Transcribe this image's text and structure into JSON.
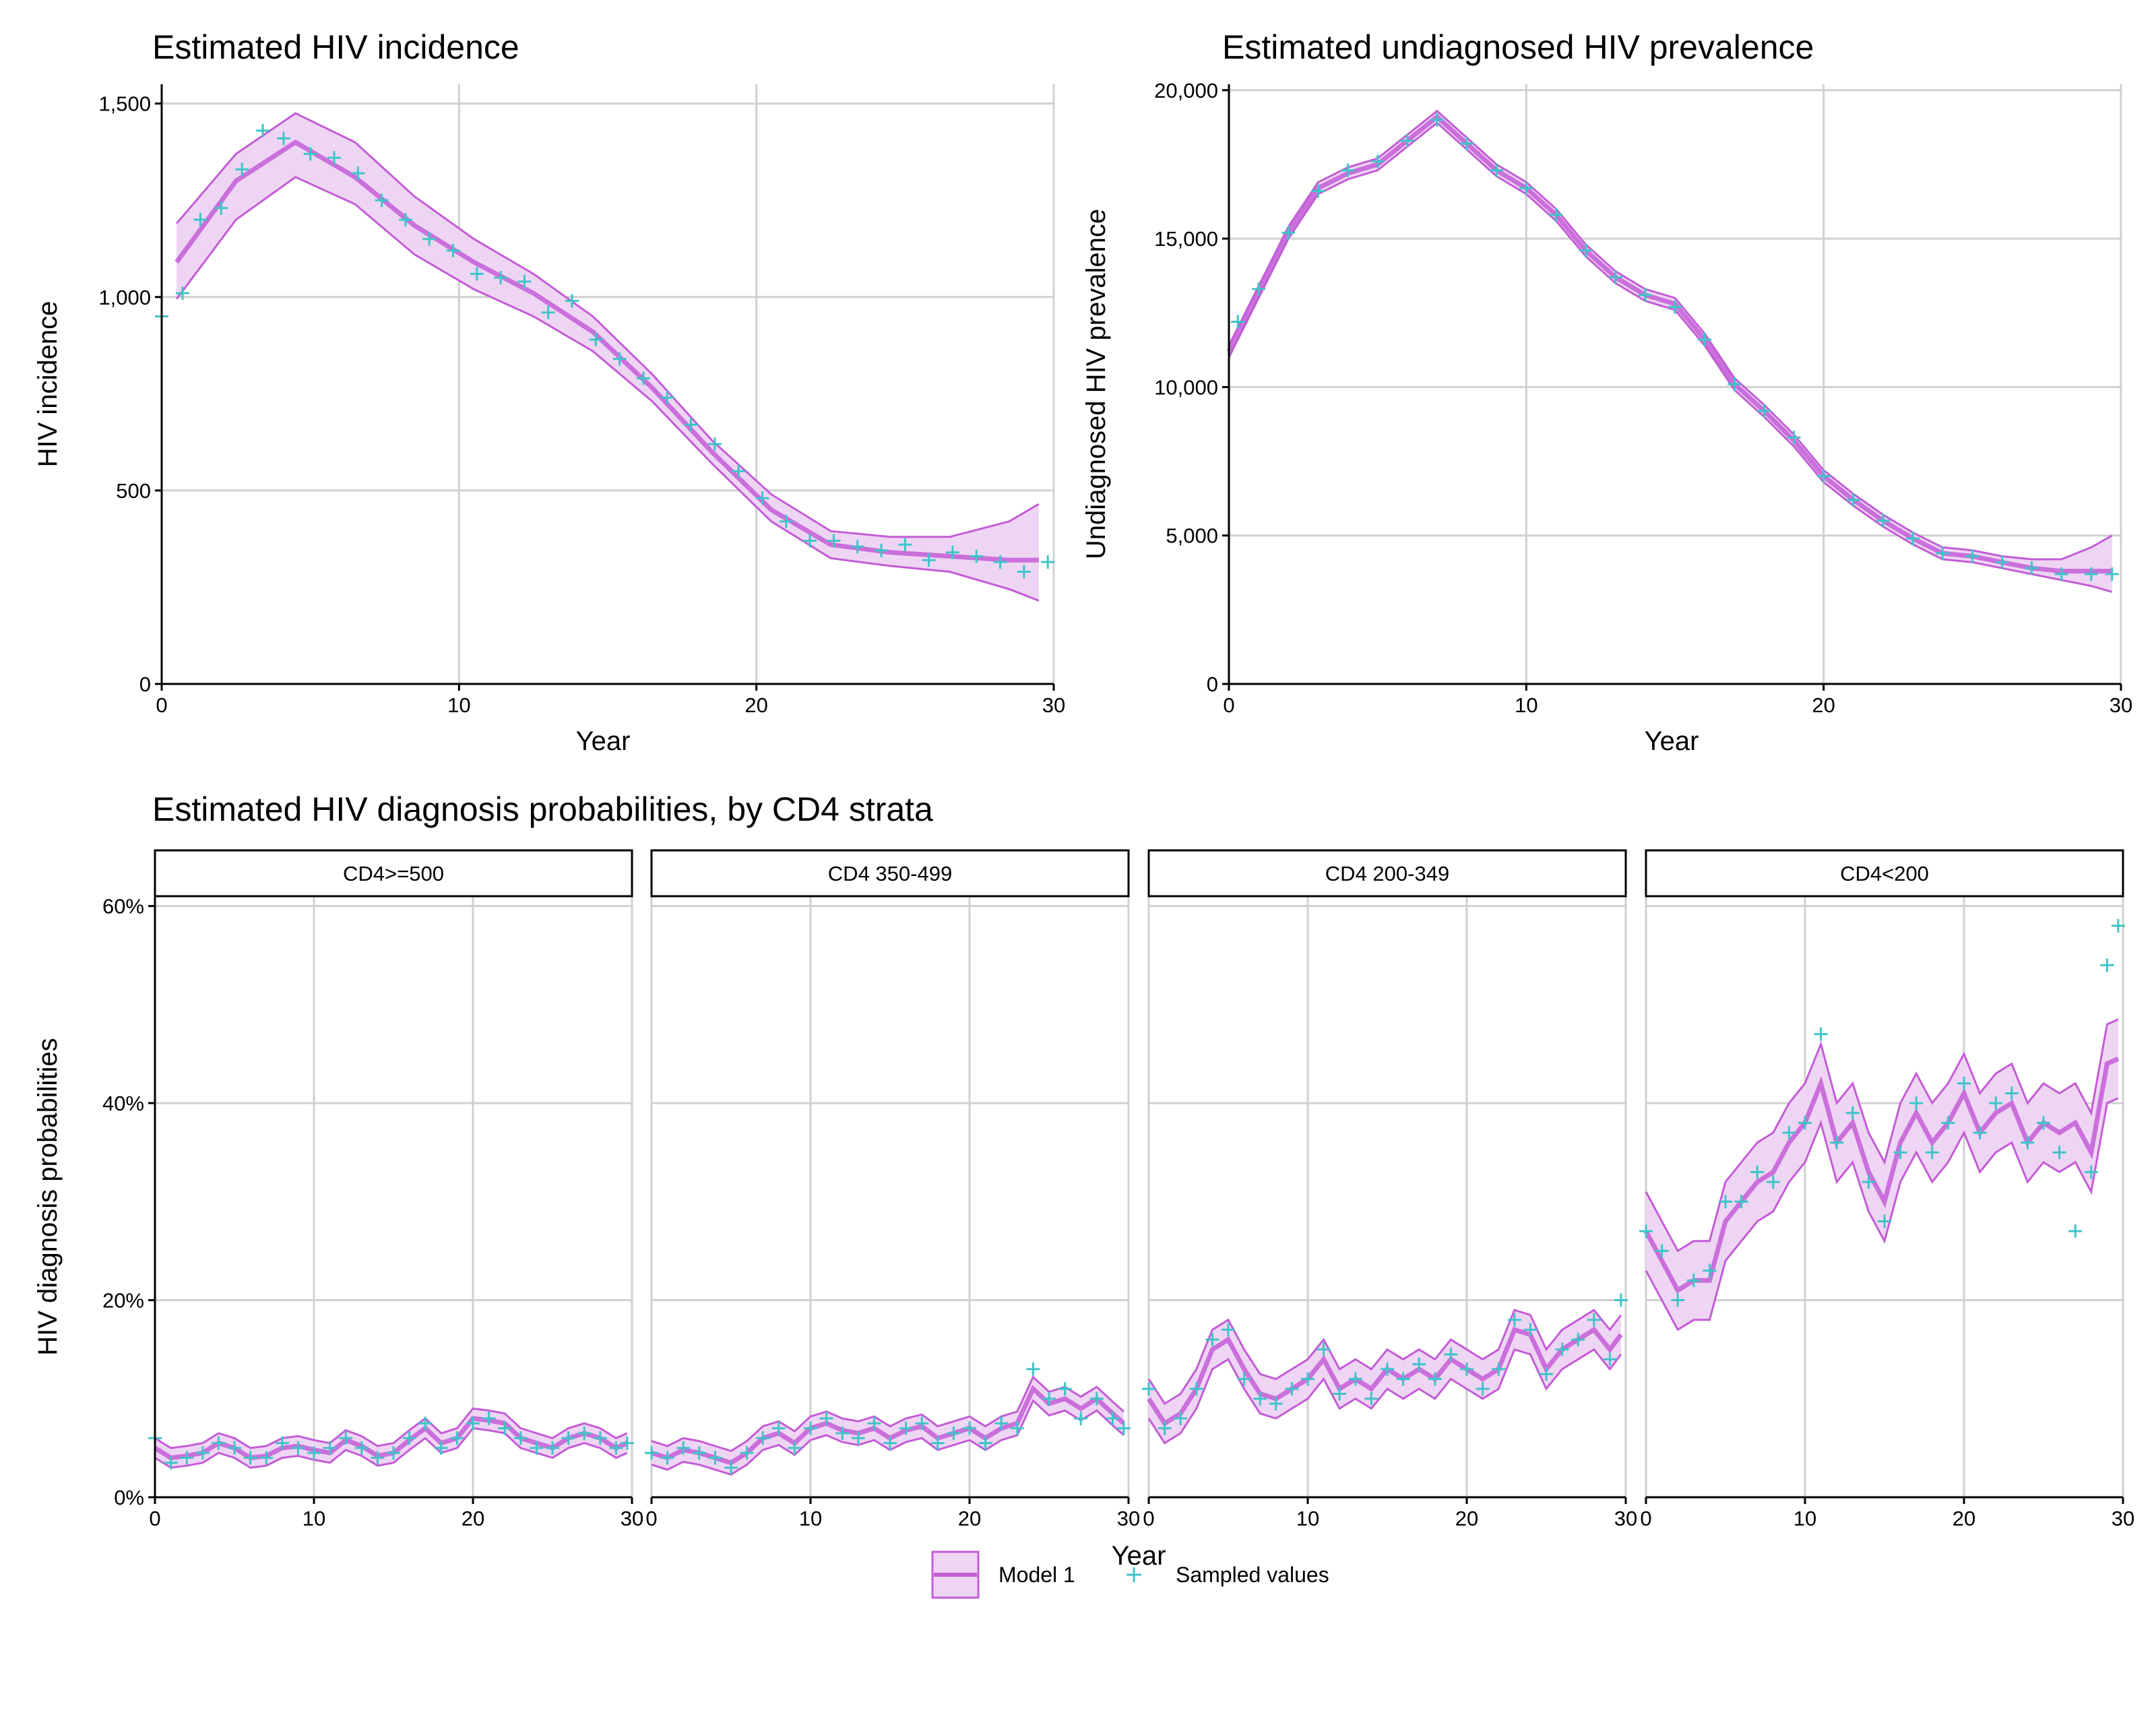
{
  "titles": {
    "incidence": "Estimated HIV incidence",
    "prevalence": "Estimated undiagnosed HIV prevalence",
    "diagnosis": "Estimated HIV diagnosis probabilities, by CD4 strata"
  },
  "legend": {
    "model": "Model 1",
    "sampled": "Sampled values"
  },
  "colors": {
    "model": "#c35dd6",
    "band": "#efd5f4",
    "sampled": "#3fc4c8",
    "grid": "#d0d0d0"
  },
  "chart_data": [
    {
      "id": "incidence",
      "type": "line",
      "title": "Estimated HIV incidence",
      "xlabel": "Year",
      "ylabel": "HIV incidence",
      "xlim": [
        0,
        30
      ],
      "ylim": [
        0,
        1550
      ],
      "x_ticks": [
        "0",
        "10",
        "20",
        "30"
      ],
      "y_ticks": [
        "0",
        "500",
        "1,000",
        "1,500"
      ],
      "x": [
        0.5,
        2.5,
        4.5,
        6.5,
        8.5,
        10.5,
        12.5,
        14.5,
        16.5,
        18.5,
        20.5,
        22.5,
        24.5,
        26.5,
        28.5,
        29.5
      ],
      "series": [
        {
          "name": "Model 1",
          "kind": "median",
          "values": [
            1090,
            1300,
            1400,
            1310,
            1185,
            1090,
            1010,
            910,
            765,
            600,
            450,
            360,
            340,
            330,
            320,
            320
          ]
        },
        {
          "name": "Model 1",
          "kind": "upper",
          "values": [
            1190,
            1370,
            1475,
            1400,
            1260,
            1150,
            1060,
            950,
            800,
            630,
            490,
            395,
            380,
            380,
            420,
            465
          ]
        },
        {
          "name": "Model 1",
          "kind": "lower",
          "values": [
            995,
            1200,
            1310,
            1240,
            1110,
            1020,
            950,
            860,
            730,
            570,
            420,
            325,
            305,
            290,
            245,
            215
          ]
        }
      ],
      "sampled_values": [
        [
          0,
          950
        ],
        [
          0.7,
          1010
        ],
        [
          1.3,
          1200
        ],
        [
          2.0,
          1230
        ],
        [
          2.7,
          1330
        ],
        [
          3.4,
          1430
        ],
        [
          4.1,
          1410
        ],
        [
          5.0,
          1370
        ],
        [
          5.8,
          1360
        ],
        [
          6.6,
          1320
        ],
        [
          7.4,
          1250
        ],
        [
          8.2,
          1200
        ],
        [
          9.0,
          1150
        ],
        [
          9.8,
          1120
        ],
        [
          10.6,
          1060
        ],
        [
          11.4,
          1050
        ],
        [
          12.2,
          1040
        ],
        [
          13.0,
          960
        ],
        [
          13.8,
          990
        ],
        [
          14.6,
          890
        ],
        [
          15.4,
          840
        ],
        [
          16.2,
          790
        ],
        [
          17.0,
          740
        ],
        [
          17.8,
          670
        ],
        [
          18.6,
          620
        ],
        [
          19.4,
          550
        ],
        [
          20.2,
          480
        ],
        [
          21.0,
          420
        ],
        [
          21.8,
          370
        ],
        [
          22.6,
          370
        ],
        [
          23.4,
          355
        ],
        [
          24.2,
          345
        ],
        [
          25.0,
          360
        ],
        [
          25.8,
          320
        ],
        [
          26.6,
          340
        ],
        [
          27.4,
          330
        ],
        [
          28.2,
          315
        ],
        [
          29.0,
          290
        ],
        [
          29.8,
          315
        ]
      ]
    },
    {
      "id": "prevalence",
      "type": "line",
      "title": "Estimated undiagnosed HIV prevalence",
      "xlabel": "Year",
      "ylabel": "Undiagnosed HIV prevalence",
      "xlim": [
        0,
        30
      ],
      "ylim": [
        0,
        20200
      ],
      "x_ticks": [
        "0",
        "10",
        "20",
        "30"
      ],
      "y_ticks": [
        "0",
        "5,000",
        "10,000",
        "15,000",
        "20,000"
      ],
      "x": [
        0,
        1,
        2,
        3,
        4,
        5,
        6,
        7,
        8,
        9,
        10,
        11,
        12,
        13,
        14,
        15,
        16,
        17,
        18,
        19,
        20,
        21,
        22,
        23,
        24,
        25,
        26,
        27,
        28,
        29,
        29.7
      ],
      "series": [
        {
          "name": "Model 1",
          "kind": "median",
          "values": [
            11200,
            13200,
            15200,
            16700,
            17200,
            17500,
            18300,
            19100,
            18200,
            17300,
            16700,
            15800,
            14600,
            13700,
            13100,
            12800,
            11600,
            10100,
            9200,
            8200,
            7000,
            6200,
            5500,
            4900,
            4400,
            4300,
            4100,
            3900,
            3800,
            3800,
            3800
          ]
        },
        {
          "name": "Model 1",
          "kind": "upper",
          "values": [
            11400,
            13400,
            15400,
            16900,
            17400,
            17700,
            18500,
            19300,
            18400,
            17500,
            16900,
            16000,
            14800,
            13900,
            13300,
            13000,
            11800,
            10300,
            9400,
            8400,
            7200,
            6400,
            5700,
            5100,
            4600,
            4500,
            4300,
            4200,
            4200,
            4600,
            5000
          ]
        },
        {
          "name": "Model 1",
          "kind": "lower",
          "values": [
            11000,
            13000,
            15000,
            16500,
            17000,
            17300,
            18100,
            18900,
            18000,
            17100,
            16500,
            15600,
            14400,
            13500,
            12900,
            12600,
            11400,
            9900,
            9000,
            8000,
            6800,
            6000,
            5300,
            4700,
            4200,
            4100,
            3900,
            3700,
            3500,
            3300,
            3100
          ]
        }
      ],
      "sampled_values": [
        [
          0.3,
          12200
        ],
        [
          1.0,
          13300
        ],
        [
          2.0,
          15200
        ],
        [
          3.0,
          16600
        ],
        [
          4.0,
          17300
        ],
        [
          5.0,
          17600
        ],
        [
          6.0,
          18300
        ],
        [
          7.0,
          19000
        ],
        [
          8.0,
          18200
        ],
        [
          9.0,
          17300
        ],
        [
          10.0,
          16700
        ],
        [
          11.0,
          15800
        ],
        [
          12.0,
          14600
        ],
        [
          13.0,
          13700
        ],
        [
          14.0,
          13100
        ],
        [
          15.0,
          12700
        ],
        [
          16.0,
          11600
        ],
        [
          17.0,
          10100
        ],
        [
          18.0,
          9200
        ],
        [
          19.0,
          8300
        ],
        [
          20.0,
          7000
        ],
        [
          21.0,
          6200
        ],
        [
          22.0,
          5500
        ],
        [
          23.0,
          4900
        ],
        [
          24.0,
          4400
        ],
        [
          25.0,
          4300
        ],
        [
          26.0,
          4100
        ],
        [
          27.0,
          3900
        ],
        [
          28.0,
          3700
        ],
        [
          29.0,
          3700
        ],
        [
          29.7,
          3700
        ]
      ]
    },
    {
      "id": "diagnosis",
      "type": "line",
      "title": "Estimated HIV diagnosis probabilities, by CD4 strata",
      "xlabel": "Year",
      "ylabel": "HIV diagnosis probabilities",
      "xlim": [
        0,
        30
      ],
      "ylim": [
        0,
        0.61
      ],
      "x_ticks": [
        "0",
        "10",
        "20",
        "30"
      ],
      "y_ticks": [
        "0%",
        "20%",
        "40%",
        "60%"
      ],
      "facets": [
        {
          "label": "CD4>=500",
          "x": [
            0,
            1,
            2,
            3,
            4,
            5,
            6,
            7,
            8,
            9,
            10,
            11,
            12,
            13,
            14,
            15,
            16,
            17,
            18,
            19,
            20,
            21,
            22,
            23,
            24,
            25,
            26,
            27,
            28,
            29,
            29.7
          ],
          "median": [
            0.05,
            0.04,
            0.042,
            0.045,
            0.055,
            0.05,
            0.04,
            0.042,
            0.05,
            0.052,
            0.048,
            0.045,
            0.058,
            0.052,
            0.042,
            0.045,
            0.058,
            0.07,
            0.055,
            0.06,
            0.08,
            0.078,
            0.075,
            0.06,
            0.055,
            0.05,
            0.06,
            0.065,
            0.06,
            0.05,
            0.055
          ],
          "spread": 0.01,
          "sampled": [
            0.06,
            0.035,
            0.04,
            0.045,
            0.055,
            0.05,
            0.04,
            0.04,
            0.055,
            0.05,
            0.045,
            0.05,
            0.06,
            0.05,
            0.04,
            0.045,
            0.06,
            0.075,
            0.05,
            0.06,
            0.075,
            0.08,
            0.07,
            0.06,
            0.05,
            0.05,
            0.06,
            0.065,
            0.06,
            0.05,
            0.055
          ]
        },
        {
          "label": "CD4 350-499",
          "x": [
            0,
            1,
            2,
            3,
            4,
            5,
            6,
            7,
            8,
            9,
            10,
            11,
            12,
            13,
            14,
            15,
            16,
            17,
            18,
            19,
            20,
            21,
            22,
            23,
            24,
            25,
            26,
            27,
            28,
            29,
            29.7
          ],
          "median": [
            0.045,
            0.04,
            0.048,
            0.045,
            0.04,
            0.035,
            0.045,
            0.06,
            0.065,
            0.055,
            0.07,
            0.075,
            0.068,
            0.065,
            0.07,
            0.06,
            0.068,
            0.072,
            0.06,
            0.065,
            0.07,
            0.06,
            0.07,
            0.075,
            0.11,
            0.095,
            0.1,
            0.09,
            0.1,
            0.085,
            0.075
          ],
          "spread": 0.012,
          "sampled": [
            0.045,
            0.04,
            0.05,
            0.045,
            0.04,
            0.03,
            0.045,
            0.06,
            0.07,
            0.05,
            0.07,
            0.08,
            0.065,
            0.06,
            0.075,
            0.055,
            0.07,
            0.075,
            0.055,
            0.065,
            0.07,
            0.055,
            0.075,
            0.07,
            0.13,
            0.1,
            0.11,
            0.08,
            0.1,
            0.08,
            0.07
          ]
        },
        {
          "label": "CD4 200-349",
          "x": [
            0,
            1,
            2,
            3,
            4,
            5,
            6,
            7,
            8,
            9,
            10,
            11,
            12,
            13,
            14,
            15,
            16,
            17,
            18,
            19,
            20,
            21,
            22,
            23,
            24,
            25,
            26,
            27,
            28,
            29,
            29.7
          ],
          "median": [
            0.1,
            0.075,
            0.085,
            0.11,
            0.15,
            0.16,
            0.13,
            0.105,
            0.1,
            0.11,
            0.12,
            0.14,
            0.11,
            0.12,
            0.11,
            0.13,
            0.12,
            0.13,
            0.12,
            0.14,
            0.13,
            0.12,
            0.13,
            0.17,
            0.165,
            0.13,
            0.15,
            0.16,
            0.17,
            0.15,
            0.165
          ],
          "spread": 0.02,
          "sampled": [
            0.11,
            0.07,
            0.08,
            0.11,
            0.16,
            0.17,
            0.12,
            0.1,
            0.095,
            0.11,
            0.12,
            0.15,
            0.105,
            0.12,
            0.1,
            0.13,
            0.12,
            0.135,
            0.12,
            0.145,
            0.13,
            0.11,
            0.13,
            0.18,
            0.17,
            0.125,
            0.15,
            0.16,
            0.18,
            0.14,
            0.2
          ]
        },
        {
          "label": "CD4<200",
          "x": [
            0,
            1,
            2,
            3,
            4,
            5,
            6,
            7,
            8,
            9,
            10,
            11,
            12,
            13,
            14,
            15,
            16,
            17,
            18,
            19,
            20,
            21,
            22,
            23,
            24,
            25,
            26,
            27,
            28,
            29,
            29.7
          ],
          "median": [
            0.27,
            0.24,
            0.21,
            0.22,
            0.22,
            0.28,
            0.3,
            0.32,
            0.33,
            0.36,
            0.38,
            0.42,
            0.36,
            0.38,
            0.33,
            0.3,
            0.36,
            0.39,
            0.36,
            0.38,
            0.41,
            0.37,
            0.39,
            0.4,
            0.36,
            0.38,
            0.37,
            0.38,
            0.35,
            0.44,
            0.445
          ],
          "spread": 0.04,
          "sampled": [
            0.27,
            0.25,
            0.2,
            0.22,
            0.23,
            0.3,
            0.3,
            0.33,
            0.32,
            0.37,
            0.38,
            0.47,
            0.36,
            0.39,
            0.32,
            0.28,
            0.35,
            0.4,
            0.35,
            0.38,
            0.42,
            0.37,
            0.4,
            0.41,
            0.36,
            0.38,
            0.35,
            0.27,
            0.33,
            0.54,
            0.58
          ]
        }
      ]
    }
  ]
}
